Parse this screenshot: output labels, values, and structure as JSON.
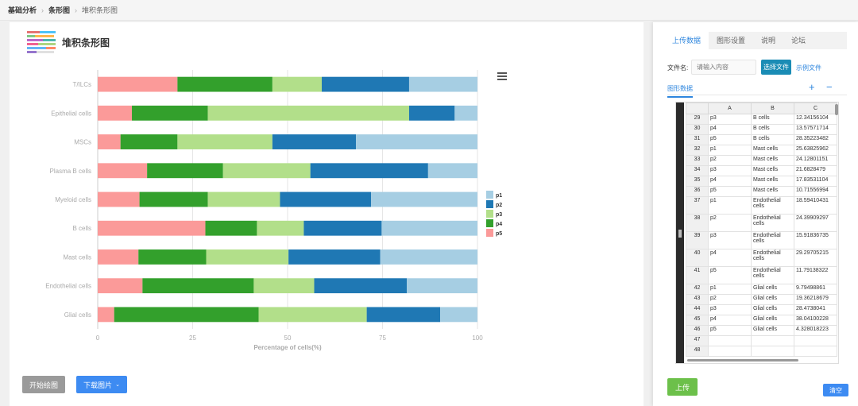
{
  "breadcrumb": {
    "items": [
      "基础分析",
      "条形图",
      "堆积条形图"
    ]
  },
  "page": {
    "title": "堆积条形图"
  },
  "toolbar": {
    "start_label": "开始绘图",
    "download_label": "下载图片"
  },
  "right_panel": {
    "tabs": [
      "上传数据",
      "图形设置",
      "说明",
      "论坛"
    ],
    "active_tab": "上传数据",
    "file_label": "文件名:",
    "file_placeholder": "请输入内容",
    "choose_file_label": "选择文件",
    "sample_file_label": "示例文件",
    "data_section_label": "图形数据",
    "upload_label": "上传",
    "clear_label": "清空"
  },
  "sheet": {
    "columns": [
      "A",
      "B",
      "C"
    ],
    "rows": [
      {
        "n": "29",
        "a": "p3",
        "b": "B cells",
        "c": "12.34156104"
      },
      {
        "n": "30",
        "a": "p4",
        "b": "B cells",
        "c": "13.57571714"
      },
      {
        "n": "31",
        "a": "p5",
        "b": "B cells",
        "c": "28.35223482"
      },
      {
        "n": "32",
        "a": "p1",
        "b": "Mast cells",
        "c": "25.63825962"
      },
      {
        "n": "33",
        "a": "p2",
        "b": "Mast cells",
        "c": "24.12801151"
      },
      {
        "n": "34",
        "a": "p3",
        "b": "Mast cells",
        "c": "21.6828479"
      },
      {
        "n": "35",
        "a": "p4",
        "b": "Mast cells",
        "c": "17.83531104"
      },
      {
        "n": "36",
        "a": "p5",
        "b": "Mast cells",
        "c": "10.71556994"
      },
      {
        "n": "37",
        "a": "p1",
        "b": "Endothelial cells",
        "c": "18.59410431"
      },
      {
        "n": "38",
        "a": "p2",
        "b": "Endothelial cells",
        "c": "24.39909297"
      },
      {
        "n": "39",
        "a": "p3",
        "b": "Endothelial cells",
        "c": "15.91836735"
      },
      {
        "n": "40",
        "a": "p4",
        "b": "Endothelial cells",
        "c": "29.29705215"
      },
      {
        "n": "41",
        "a": "p5",
        "b": "Endothelial cells",
        "c": "11.79138322"
      },
      {
        "n": "42",
        "a": "p1",
        "b": "Glial cells",
        "c": "9.79498861"
      },
      {
        "n": "43",
        "a": "p2",
        "b": "Glial cells",
        "c": "19.36218679"
      },
      {
        "n": "44",
        "a": "p3",
        "b": "Glial cells",
        "c": "28.4738041"
      },
      {
        "n": "45",
        "a": "p4",
        "b": "Glial cells",
        "c": "38.04100228"
      },
      {
        "n": "46",
        "a": "p5",
        "b": "Glial cells",
        "c": "4.328018223"
      },
      {
        "n": "47",
        "a": "",
        "b": "",
        "c": ""
      },
      {
        "n": "48",
        "a": "",
        "b": "",
        "c": ""
      }
    ]
  },
  "colors": {
    "p1": "#a6cee3",
    "p2": "#1f78b4",
    "p3": "#b2df8a",
    "p4": "#33a02c",
    "p5": "#fb9a99"
  },
  "chart_data": {
    "type": "bar",
    "orientation": "horizontal",
    "stacked": true,
    "categories": [
      "T/ILCs",
      "Epithelial cells",
      "MSCs",
      "Plasma B cells",
      "Myeloid cells",
      "B cells",
      "Mast cells",
      "Endothelial cells",
      "Glial cells"
    ],
    "series": [
      {
        "name": "p5",
        "values": [
          21,
          9,
          6,
          13,
          11,
          28.35,
          10.72,
          11.79,
          4.33
        ]
      },
      {
        "name": "p4",
        "values": [
          25,
          20,
          15,
          20,
          18,
          13.58,
          17.84,
          29.3,
          38.04
        ]
      },
      {
        "name": "p3",
        "values": [
          13,
          53,
          25,
          23,
          19,
          12.34,
          21.68,
          15.92,
          28.47
        ]
      },
      {
        "name": "p2",
        "values": [
          23,
          12,
          22,
          31,
          24,
          20.5,
          24.13,
          24.4,
          19.36
        ]
      },
      {
        "name": "p1",
        "values": [
          18,
          6,
          32,
          13,
          28,
          25.23,
          25.64,
          18.59,
          9.79
        ]
      }
    ],
    "xlabel": "Percentage of cells(%)",
    "xlim": [
      0,
      100
    ],
    "xticks": [
      "0",
      "25",
      "50",
      "75",
      "100"
    ],
    "grid": true,
    "legend": {
      "entries": [
        "p1",
        "p2",
        "p3",
        "p4",
        "p5"
      ],
      "placement": "right"
    }
  }
}
